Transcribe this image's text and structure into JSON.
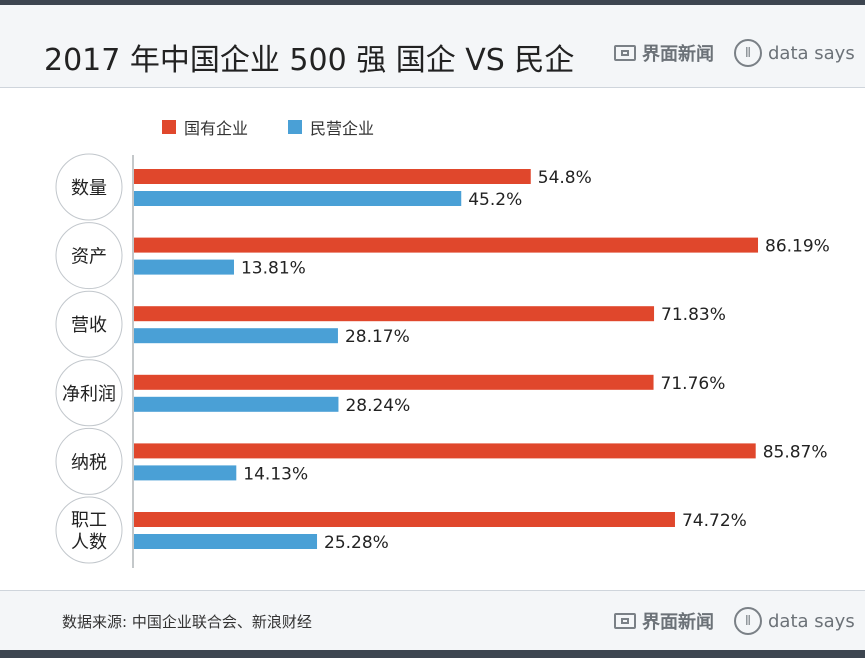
{
  "header": {
    "title": "2017 年中国企业 500 强  国企 VS 民企",
    "brand_name": "界面新闻",
    "brand_tag": "data says"
  },
  "footer": {
    "source": "数据来源: 中国企业联合会、新浪财经",
    "brand_name": "界面新闻",
    "brand_tag": "data says"
  },
  "colors": {
    "state_owned": "#e0472c",
    "private": "#4aa0d6"
  },
  "chart_data": {
    "type": "bar",
    "orientation": "horizontal",
    "title": "2017 年中国企业 500 强  国企 VS 民企",
    "categories": [
      "数量",
      "资产",
      "营收",
      "净利润",
      "纳税",
      "职工人数"
    ],
    "category_lines": [
      [
        "数量"
      ],
      [
        "资产"
      ],
      [
        "营收"
      ],
      [
        "净利润"
      ],
      [
        "纳税"
      ],
      [
        "职工",
        "人数"
      ]
    ],
    "series": [
      {
        "name": "国有企业",
        "values": [
          54.8,
          86.19,
          71.83,
          71.76,
          85.87,
          74.72
        ],
        "labels": [
          "54.8%",
          "86.19%",
          "71.83%",
          "71.76%",
          "85.87%",
          "74.72%"
        ]
      },
      {
        "name": "民营企业",
        "values": [
          45.2,
          13.81,
          28.17,
          28.24,
          14.13,
          25.28
        ],
        "labels": [
          "45.2%",
          "13.81%",
          "28.17%",
          "28.24%",
          "14.13%",
          "25.28%"
        ]
      }
    ],
    "xlim": [
      0,
      100
    ],
    "unit": "%",
    "legend_position": "top-left",
    "grid": false
  }
}
